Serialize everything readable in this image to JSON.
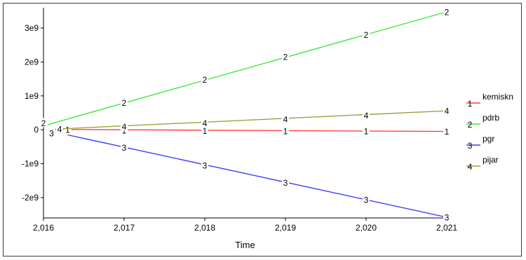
{
  "chart_data": {
    "type": "line",
    "xlabel": "Time",
    "ylabel": "",
    "xlim": [
      2016,
      2021
    ],
    "ylim": [
      -2600000000.0,
      3600000000.0
    ],
    "x_ticks": [
      2016,
      2017,
      2018,
      2019,
      2020,
      2021
    ],
    "x_tick_labels": [
      "2,016",
      "2,017",
      "2,018",
      "2,019",
      "2,020",
      "2,021"
    ],
    "y_ticks": [
      -2000000000.0,
      -1000000000.0,
      0,
      1000000000.0,
      2000000000.0,
      3000000000.0
    ],
    "y_tick_labels": [
      "-2e9",
      "-1e9",
      "0",
      "1e9",
      "2e9",
      "3e9"
    ],
    "grid": false,
    "legend_position": "right",
    "series": [
      {
        "name": "kemiskn",
        "marker": "1",
        "color": "#ff4040",
        "points": [
          [
            2016.1,
            10000000
          ],
          [
            2021,
            -50000000
          ]
        ],
        "markers": [
          [
            2016.3,
            0
          ],
          [
            2017,
            -20000000
          ],
          [
            2018,
            -30000000
          ],
          [
            2019,
            -40000000
          ],
          [
            2020,
            -40000000
          ],
          [
            2021,
            -50000000
          ]
        ]
      },
      {
        "name": "pdrb",
        "marker": "2",
        "color": "#3ee83e",
        "points": [
          [
            2016.05,
            150000000
          ],
          [
            2021,
            3480000000
          ]
        ],
        "markers": [
          [
            2016,
            200000000
          ],
          [
            2017,
            800000000
          ],
          [
            2018,
            1480000000
          ],
          [
            2019,
            2150000000
          ],
          [
            2020,
            2800000000
          ],
          [
            2021,
            3480000000
          ]
        ]
      },
      {
        "name": "pgr",
        "marker": "3",
        "color": "#3b3bff",
        "points": [
          [
            2016.3,
            -150000000
          ],
          [
            2021,
            -2580000000
          ]
        ],
        "markers": [
          [
            2016.1,
            -100000000
          ],
          [
            2017,
            -520000000
          ],
          [
            2018,
            -1050000000
          ],
          [
            2019,
            -1560000000
          ],
          [
            2020,
            -2060000000
          ],
          [
            2021,
            -2580000000
          ]
        ]
      },
      {
        "name": "pijar",
        "marker": "4",
        "color": "#a0a03a",
        "points": [
          [
            2016.15,
            20000000
          ],
          [
            2021,
            560000000
          ]
        ],
        "markers": [
          [
            2016.2,
            20000000
          ],
          [
            2017,
            100000000
          ],
          [
            2018,
            200000000
          ],
          [
            2019,
            310000000
          ],
          [
            2020,
            430000000
          ],
          [
            2021,
            560000000
          ]
        ]
      }
    ]
  }
}
